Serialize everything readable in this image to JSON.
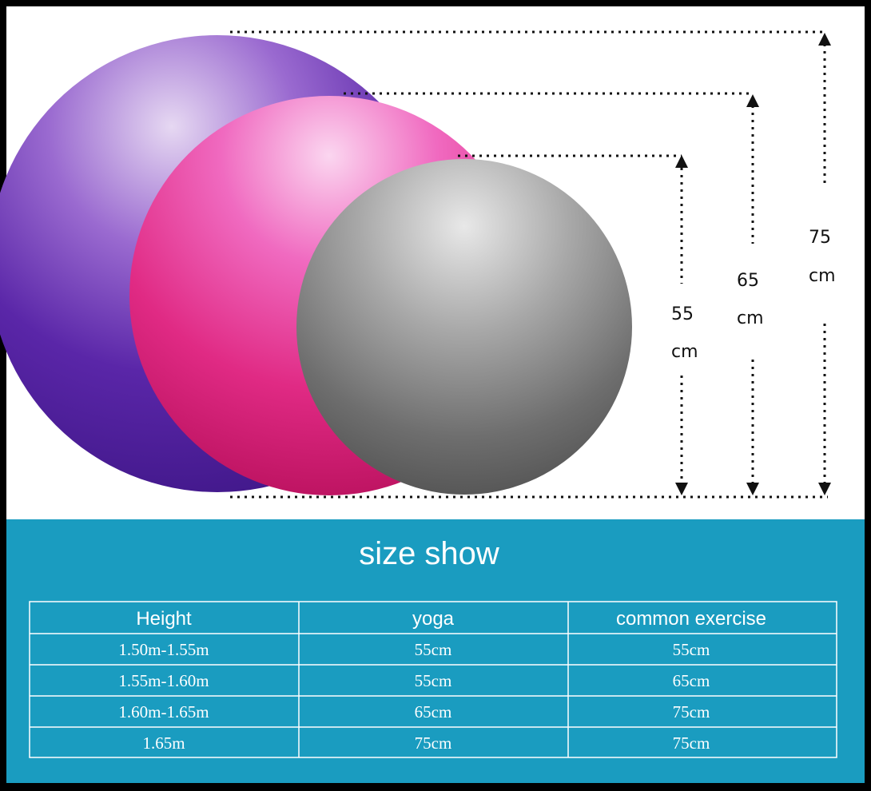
{
  "dimensions": [
    {
      "value": "55",
      "unit": "cm"
    },
    {
      "value": "65",
      "unit": "cm"
    },
    {
      "value": "75",
      "unit": "cm"
    }
  ],
  "title": "size show",
  "table": {
    "header": [
      "Height",
      "yoga",
      "common exercise"
    ],
    "rows": [
      [
        "1.50m-1.55m",
        "55cm",
        "55cm"
      ],
      [
        "1.55m-1.60m",
        "55cm",
        "65cm"
      ],
      [
        "1.60m-1.65m",
        "65cm",
        "75cm"
      ],
      [
        "1.65m",
        "75cm",
        "75cm"
      ]
    ]
  }
}
